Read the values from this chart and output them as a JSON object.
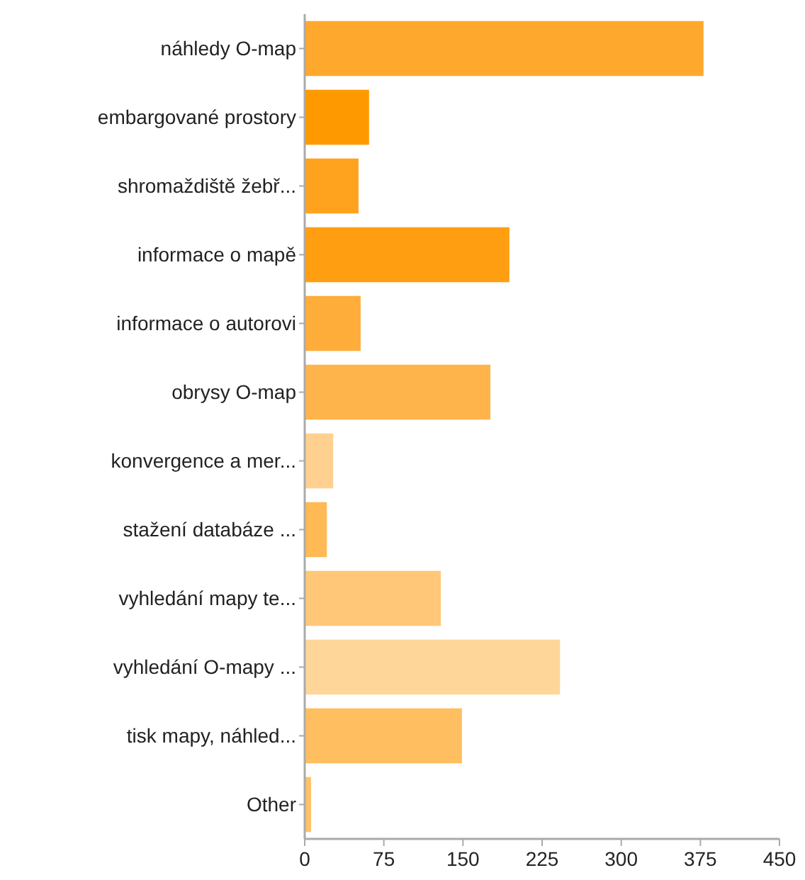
{
  "chart_data": {
    "type": "bar",
    "orientation": "horizontal",
    "categories": [
      "náhledy O-map",
      "embargované prostory",
      "shromaždiště žebř...",
      "informace o mapě",
      "informace o autorovi",
      "obrysy O-map",
      "konvergence a mer...",
      "stažení databáze ...",
      "vyhledání mapy te...",
      "vyhledání O-mapy ...",
      "tisk mapy, náhled...",
      "Other"
    ],
    "values": [
      378,
      61,
      51,
      194,
      53,
      176,
      27,
      21,
      129,
      242,
      149,
      6
    ],
    "colors": [
      "#ffa82e",
      "#ff9900",
      "#ffa31f",
      "#ff9e10",
      "#ffad3a",
      "#ffb44b",
      "#ffd08f",
      "#ffb955",
      "#ffc777",
      "#ffd699",
      "#ffbe5f",
      "#ffc169"
    ],
    "xlim": [
      0,
      450
    ],
    "xticks": [
      0,
      75,
      150,
      225,
      300,
      375,
      450
    ],
    "grid": false
  }
}
